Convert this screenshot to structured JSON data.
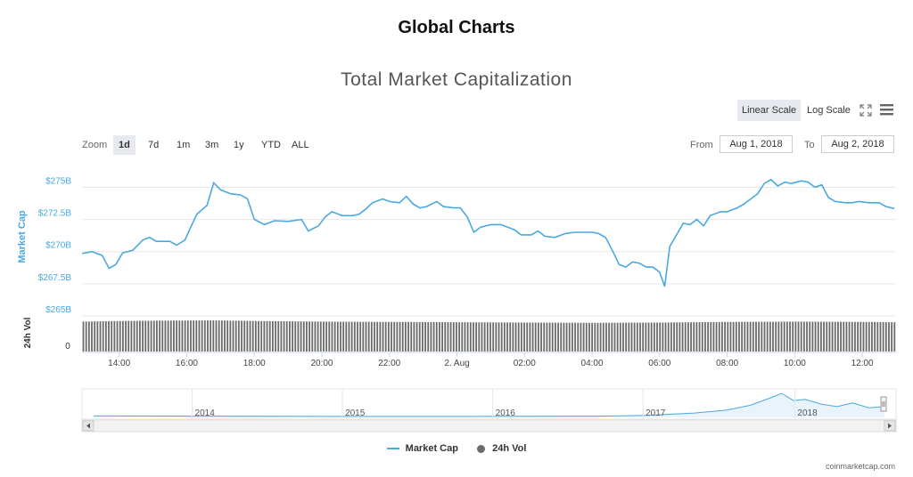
{
  "page": {
    "title": "Global Charts",
    "credit": "coinmarketcap.com"
  },
  "toolbar": {
    "linear_label": "Linear Scale",
    "log_label": "Log Scale",
    "zoom_label": "Zoom",
    "zoom_options": [
      "1d",
      "7d",
      "1m",
      "3m",
      "1y",
      "YTD",
      "ALL"
    ],
    "zoom_active": "1d",
    "from_label": "From",
    "from_value": "Aug 1, 2018",
    "to_label": "To",
    "to_value": "Aug 2, 2018"
  },
  "colors": {
    "line": "#4aa8e0",
    "volume": "#6b6b6b",
    "navigator": "#4aa8e0"
  },
  "chart_data": {
    "type": "line",
    "title": "Total Market Capitalization",
    "ylabel": "Market Cap",
    "y2label": "24h Vol",
    "y_ticks": [
      {
        "value": 265,
        "label": "$265B"
      },
      {
        "value": 267.5,
        "label": "$267.5B"
      },
      {
        "value": 270,
        "label": "$270B"
      },
      {
        "value": 272.5,
        "label": "$272.5B"
      },
      {
        "value": 275,
        "label": "$275B"
      }
    ],
    "vol_axis_label": "0",
    "ylim": [
      265,
      276
    ],
    "xlim": [
      12.9,
      37.0
    ],
    "x_ticks": [
      {
        "value": 14,
        "label": "14:00"
      },
      {
        "value": 16,
        "label": "16:00"
      },
      {
        "value": 18,
        "label": "18:00"
      },
      {
        "value": 20,
        "label": "20:00"
      },
      {
        "value": 22,
        "label": "22:00"
      },
      {
        "value": 24,
        "label": "2. Aug"
      },
      {
        "value": 26,
        "label": "02:00"
      },
      {
        "value": 28,
        "label": "04:00"
      },
      {
        "value": 30,
        "label": "06:00"
      },
      {
        "value": 32,
        "label": "08:00"
      },
      {
        "value": 34,
        "label": "10:00"
      },
      {
        "value": 36,
        "label": "12:00"
      }
    ],
    "market_cap": [
      [
        12.9,
        269.85
      ],
      [
        13.2,
        270.0
      ],
      [
        13.5,
        269.7
      ],
      [
        13.7,
        268.7
      ],
      [
        13.9,
        269.0
      ],
      [
        14.1,
        269.9
      ],
      [
        14.4,
        270.1
      ],
      [
        14.7,
        270.9
      ],
      [
        14.9,
        271.1
      ],
      [
        15.1,
        270.8
      ],
      [
        15.5,
        270.8
      ],
      [
        15.7,
        270.5
      ],
      [
        15.95,
        270.9
      ],
      [
        16.1,
        271.8
      ],
      [
        16.3,
        272.9
      ],
      [
        16.6,
        273.6
      ],
      [
        16.8,
        275.35
      ],
      [
        17.0,
        274.8
      ],
      [
        17.3,
        274.5
      ],
      [
        17.6,
        274.4
      ],
      [
        17.8,
        274.1
      ],
      [
        18.0,
        272.5
      ],
      [
        18.3,
        272.1
      ],
      [
        18.6,
        272.4
      ],
      [
        19.0,
        272.35
      ],
      [
        19.4,
        272.5
      ],
      [
        19.6,
        271.6
      ],
      [
        19.9,
        272.0
      ],
      [
        20.1,
        272.7
      ],
      [
        20.3,
        273.1
      ],
      [
        20.6,
        272.8
      ],
      [
        20.9,
        272.8
      ],
      [
        21.1,
        272.9
      ],
      [
        21.3,
        273.3
      ],
      [
        21.5,
        273.8
      ],
      [
        21.8,
        274.1
      ],
      [
        22.0,
        273.9
      ],
      [
        22.3,
        273.8
      ],
      [
        22.5,
        274.3
      ],
      [
        22.7,
        273.7
      ],
      [
        22.9,
        273.4
      ],
      [
        23.1,
        273.5
      ],
      [
        23.4,
        273.9
      ],
      [
        23.6,
        273.5
      ],
      [
        23.9,
        273.4
      ],
      [
        24.1,
        273.4
      ],
      [
        24.3,
        272.7
      ],
      [
        24.5,
        271.5
      ],
      [
        24.7,
        271.9
      ],
      [
        25.0,
        272.1
      ],
      [
        25.3,
        272.1
      ],
      [
        25.5,
        271.9
      ],
      [
        25.7,
        271.7
      ],
      [
        25.9,
        271.3
      ],
      [
        26.2,
        271.3
      ],
      [
        26.4,
        271.6
      ],
      [
        26.6,
        271.2
      ],
      [
        26.9,
        271.1
      ],
      [
        27.2,
        271.4
      ],
      [
        27.5,
        271.5
      ],
      [
        27.8,
        271.5
      ],
      [
        28.0,
        271.5
      ],
      [
        28.2,
        271.4
      ],
      [
        28.4,
        271.1
      ],
      [
        28.6,
        270.1
      ],
      [
        28.8,
        269.0
      ],
      [
        29.0,
        268.8
      ],
      [
        29.2,
        269.2
      ],
      [
        29.4,
        269.1
      ],
      [
        29.6,
        268.8
      ],
      [
        29.8,
        268.8
      ],
      [
        30.0,
        268.4
      ],
      [
        30.15,
        267.3
      ],
      [
        30.3,
        270.4
      ],
      [
        30.5,
        271.3
      ],
      [
        30.7,
        272.2
      ],
      [
        30.9,
        272.1
      ],
      [
        31.1,
        272.5
      ],
      [
        31.3,
        272.0
      ],
      [
        31.5,
        272.8
      ],
      [
        31.8,
        273.1
      ],
      [
        32.0,
        273.1
      ],
      [
        32.3,
        273.4
      ],
      [
        32.5,
        273.7
      ],
      [
        32.7,
        274.1
      ],
      [
        32.9,
        274.5
      ],
      [
        33.1,
        275.3
      ],
      [
        33.3,
        275.6
      ],
      [
        33.5,
        275.1
      ],
      [
        33.7,
        275.4
      ],
      [
        33.9,
        275.3
      ],
      [
        34.2,
        275.5
      ],
      [
        34.4,
        275.4
      ],
      [
        34.6,
        275.0
      ],
      [
        34.8,
        275.2
      ],
      [
        35.0,
        274.2
      ],
      [
        35.2,
        273.9
      ],
      [
        35.5,
        273.8
      ],
      [
        35.7,
        273.8
      ],
      [
        35.9,
        273.9
      ],
      [
        36.2,
        273.8
      ],
      [
        36.5,
        273.8
      ],
      [
        36.7,
        273.5
      ],
      [
        36.95,
        273.35
      ]
    ],
    "volume_relative": [
      [
        12.9,
        0.96
      ],
      [
        14.0,
        0.98
      ],
      [
        15.0,
        0.99
      ],
      [
        16.8,
        1.0
      ],
      [
        18.0,
        0.98
      ],
      [
        20.0,
        0.96
      ],
      [
        22.0,
        0.95
      ],
      [
        24.0,
        0.94
      ],
      [
        26.0,
        0.93
      ],
      [
        28.0,
        0.92
      ],
      [
        30.0,
        0.93
      ],
      [
        32.0,
        0.95
      ],
      [
        34.0,
        0.96
      ],
      [
        36.0,
        0.95
      ],
      [
        37.0,
        0.94
      ]
    ],
    "navigator": {
      "years": [
        "2014",
        "2015",
        "2016",
        "2017",
        "2018"
      ],
      "series_relative": [
        [
          0.0,
          0.06
        ],
        [
          0.14,
          0.05
        ],
        [
          0.3,
          0.04
        ],
        [
          0.48,
          0.04
        ],
        [
          0.64,
          0.05
        ],
        [
          0.7,
          0.08
        ],
        [
          0.76,
          0.18
        ],
        [
          0.8,
          0.3
        ],
        [
          0.83,
          0.5
        ],
        [
          0.855,
          0.8
        ],
        [
          0.87,
          1.0
        ],
        [
          0.885,
          0.7
        ],
        [
          0.9,
          0.75
        ],
        [
          0.92,
          0.55
        ],
        [
          0.94,
          0.45
        ],
        [
          0.96,
          0.6
        ],
        [
          0.98,
          0.4
        ],
        [
          1.0,
          0.45
        ]
      ]
    },
    "legend": [
      {
        "name": "Market Cap",
        "marker": "line"
      },
      {
        "name": "24h Vol",
        "marker": "dot"
      }
    ],
    "legend_position": "bottom-center",
    "grid": true
  }
}
